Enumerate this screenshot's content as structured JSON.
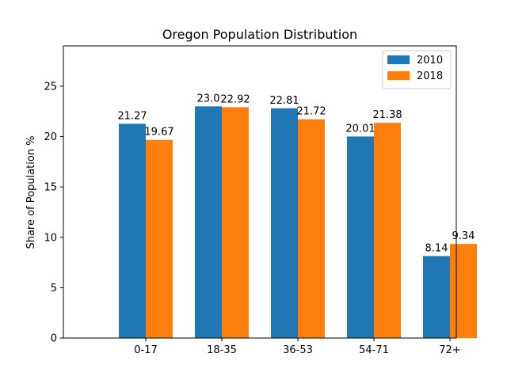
{
  "chart_data": {
    "type": "bar",
    "title": "Oregon Population Distribution",
    "xlabel": "",
    "ylabel": "Share of Population %",
    "categories": [
      "0-17",
      "18-35",
      "36-53",
      "54-71",
      "72+"
    ],
    "series": [
      {
        "name": "2010",
        "values": [
          21.27,
          23.0,
          22.81,
          20.01,
          8.14
        ],
        "labels": [
          "21.27",
          "23.0",
          "22.81",
          "20.01",
          "8.14"
        ],
        "color": "#1f77b4"
      },
      {
        "name": "2018",
        "values": [
          19.67,
          22.92,
          21.72,
          21.38,
          9.34
        ],
        "labels": [
          "19.67",
          "22.92",
          "21.72",
          "21.38",
          "9.34"
        ],
        "color": "#ff7f0e"
      }
    ],
    "ylim": [
      0,
      29
    ],
    "yticks": [
      0,
      5,
      10,
      15,
      20,
      25
    ],
    "grid": false,
    "legend_position": "top-right"
  }
}
